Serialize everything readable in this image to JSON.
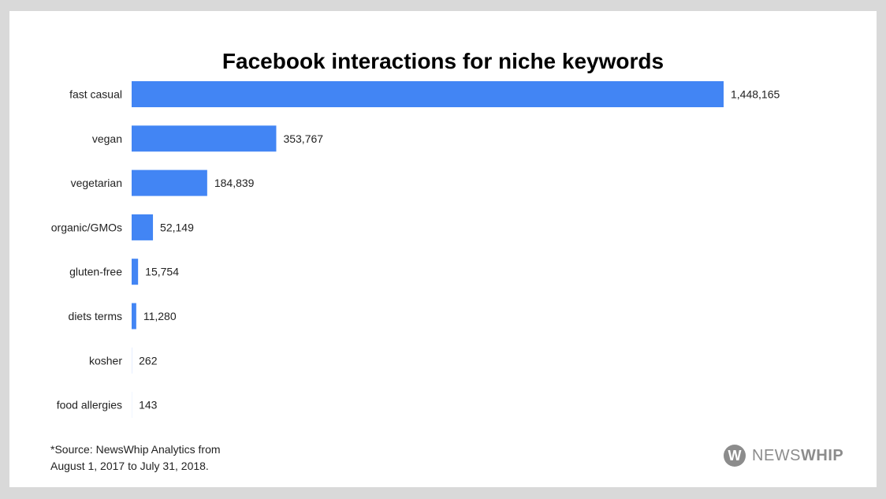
{
  "chart_data": {
    "type": "bar",
    "orientation": "horizontal",
    "title": "Facebook interactions for niche keywords",
    "categories": [
      "fast casual",
      "vegan",
      "vegetarian",
      "organic/GMOs",
      "gluten-free",
      "diets terms",
      "kosher",
      "food allergies"
    ],
    "values": [
      1448165,
      353767,
      184839,
      52149,
      15754,
      11280,
      262,
      143
    ],
    "value_labels": [
      "1,448,165",
      "353,767",
      "184,839",
      "52,149",
      "15,754",
      "11,280",
      "262",
      "143"
    ],
    "bar_color": "#4285f4",
    "xlim": [
      0,
      1448165
    ],
    "grid": false,
    "legend": "none"
  },
  "footnote": {
    "line1": "*Source: NewsWhip Analytics from",
    "line2": "August 1, 2017 to July 31, 2018."
  },
  "logo": {
    "mark": "W",
    "text_light": "NEWS",
    "text_bold": "WHIP",
    "icon": "newswhip-logo-icon",
    "color": "#8c8c8c"
  }
}
